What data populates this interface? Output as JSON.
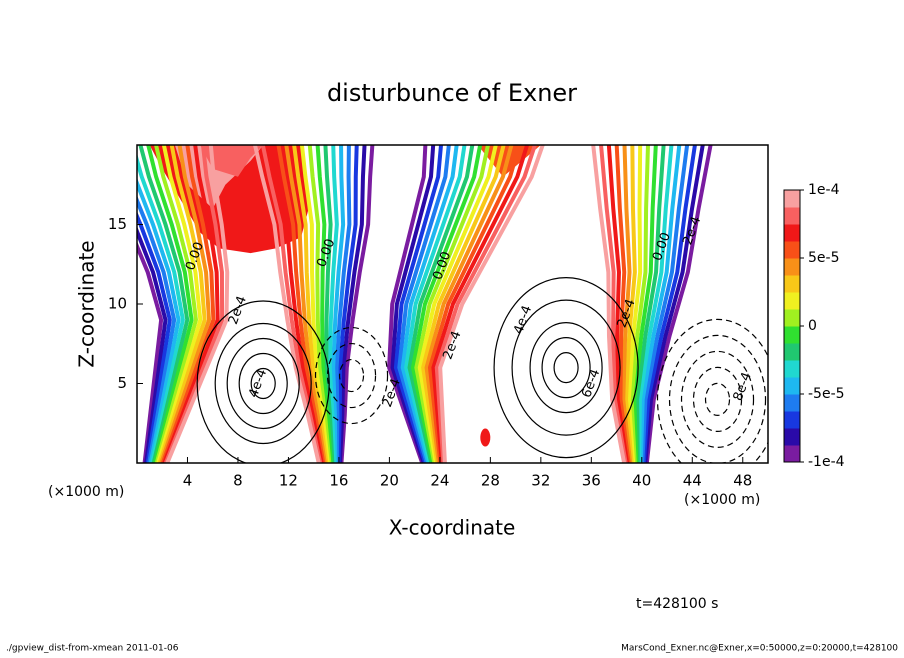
{
  "chart_data": {
    "type": "contour",
    "title": "disturbunce of Exner",
    "x_label": "X-coordinate",
    "y_label": "Z-coordinate",
    "x_unit_left": "(×1000 m)",
    "x_unit_right": "(×1000 m)",
    "xlim": [
      0,
      50
    ],
    "ylim": [
      0,
      20
    ],
    "xticks": [
      4,
      8,
      12,
      16,
      20,
      24,
      28,
      32,
      36,
      40,
      44,
      48
    ],
    "yticks": [
      5,
      10,
      15
    ],
    "colorbar": {
      "lim": [
        -0.0001,
        0.0001
      ],
      "ticks": [
        {
          "value": 0.0001,
          "label": "1e-4"
        },
        {
          "value": 5e-05,
          "label": "5e-5"
        },
        0,
        {
          "value": -5e-05,
          "label": "-5e-5"
        },
        {
          "value": -0.0001,
          "label": "-1e-4"
        }
      ],
      "colors": [
        "#7a1ca0",
        "#2a0aa8",
        "#1838e0",
        "#1e7cf0",
        "#1eb8f0",
        "#20d8d0",
        "#20c870",
        "#30e030",
        "#a0f020",
        "#f0f020",
        "#f8c818",
        "#f89018",
        "#f85018",
        "#f01818",
        "#f86060",
        "#f8a0a0"
      ]
    },
    "contour_labels": [
      {
        "text": "0.00",
        "x": 4.6,
        "y": 13.0
      },
      {
        "text": "0.00",
        "x": 15.0,
        "y": 13.2
      },
      {
        "text": "0.00",
        "x": 24.2,
        "y": 12.4
      },
      {
        "text": "0.00",
        "x": 41.6,
        "y": 13.6
      },
      {
        "text": "2e-4",
        "x": 8.0,
        "y": 9.6
      },
      {
        "text": "2e-4",
        "x": 20.2,
        "y": 4.4
      },
      {
        "text": "2e-4",
        "x": 25.0,
        "y": 7.4
      },
      {
        "text": "4e-4",
        "x": 30.6,
        "y": 9.0
      },
      {
        "text": "2e-4",
        "x": 38.8,
        "y": 9.4
      },
      {
        "text": "2e-4",
        "x": 44.0,
        "y": 14.6
      },
      {
        "text": "4e-4",
        "x": 9.6,
        "y": 5.0
      },
      {
        "text": "6e-4",
        "x": 36.0,
        "y": 5.0
      },
      {
        "text": "8e-4",
        "x": 48.0,
        "y": 4.8
      }
    ],
    "time_label": "t=428100 s",
    "footer_left": "./gpview_dist-from-xmean  2011-01-06",
    "footer_right": "MarsCond_Exner.nc@Exner,x=0:50000,z=0:20000,t=428100"
  }
}
